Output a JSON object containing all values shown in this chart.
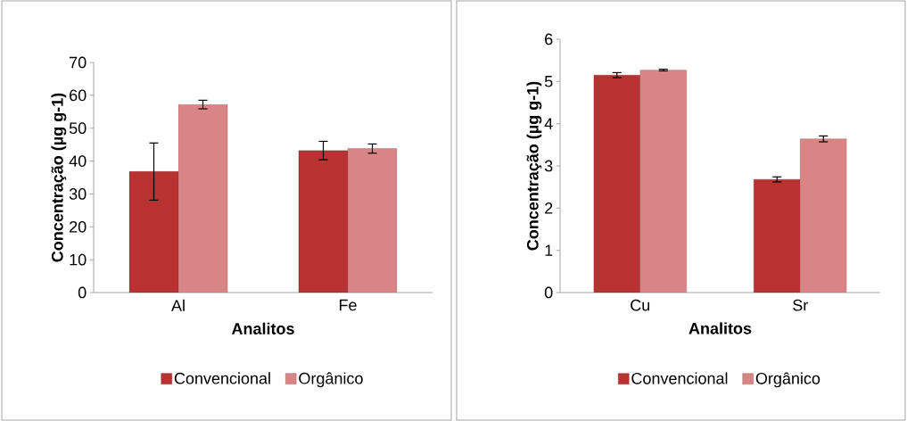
{
  "chart_data": [
    {
      "type": "bar",
      "categories": [
        "Al",
        "Fe"
      ],
      "xlabel": "Analitos",
      "ylabel": "Concentração (µg g-1)",
      "ylim": [
        0,
        70
      ],
      "yticks": [
        0,
        10,
        20,
        30,
        40,
        50,
        60,
        70
      ],
      "legend": "bottom",
      "series": [
        {
          "name": "Convencional",
          "color": "#b83232",
          "values": [
            36.8,
            43.2
          ],
          "errors": [
            8.7,
            2.8
          ]
        },
        {
          "name": "Orgânico",
          "color": "#d98585",
          "values": [
            57.2,
            43.8
          ],
          "errors": [
            1.3,
            1.4
          ]
        }
      ]
    },
    {
      "type": "bar",
      "categories": [
        "Cu",
        "Sr"
      ],
      "xlabel": "Analitos",
      "ylabel": "Concentração (µg g-1)",
      "ylim": [
        0,
        6
      ],
      "yticks": [
        0,
        1,
        2,
        3,
        4,
        5,
        6
      ],
      "legend": "bottom",
      "series": [
        {
          "name": "Convencional",
          "color": "#b83232",
          "values": [
            5.15,
            2.68
          ],
          "errors": [
            0.06,
            0.06
          ]
        },
        {
          "name": "Orgânico",
          "color": "#d98585",
          "values": [
            5.27,
            3.64
          ],
          "errors": [
            0.02,
            0.07
          ]
        }
      ]
    }
  ]
}
